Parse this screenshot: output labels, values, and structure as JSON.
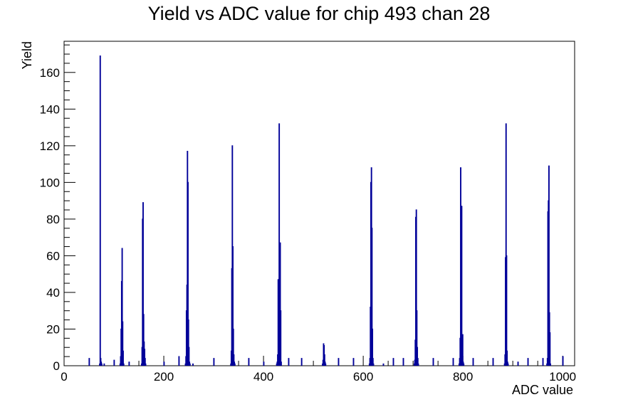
{
  "chart_data": {
    "type": "bar",
    "title": "Yield vs ADC value for chip 493 chan 28",
    "xlabel": "ADC value",
    "ylabel": "Yield",
    "xlim": [
      0,
      1024
    ],
    "ylim": [
      0,
      177
    ],
    "x_ticks": [
      0,
      200,
      400,
      600,
      800,
      1000
    ],
    "x_tick_labels": [
      "0",
      "200",
      "400",
      "600",
      "800",
      "1000"
    ],
    "y_ticks": [
      0,
      20,
      40,
      60,
      80,
      100,
      120,
      140,
      160
    ],
    "y_tick_labels": [
      "0",
      "20",
      "40",
      "60",
      "80",
      "100",
      "120",
      "140",
      "160"
    ],
    "bin_width": 1,
    "line_color": "#000099",
    "x": [
      71,
      72,
      73,
      74,
      75,
      112,
      113,
      114,
      115,
      116,
      117,
      118,
      119,
      155,
      156,
      157,
      158,
      159,
      160,
      161,
      162,
      163,
      243,
      244,
      245,
      246,
      247,
      248,
      249,
      250,
      251,
      252,
      334,
      335,
      336,
      337,
      338,
      339,
      340,
      341,
      342,
      426,
      427,
      428,
      429,
      430,
      431,
      432,
      433,
      434,
      435,
      518,
      519,
      520,
      521,
      522,
      523,
      524,
      612,
      613,
      614,
      615,
      616,
      617,
      618,
      619,
      620,
      702,
      703,
      704,
      705,
      706,
      707,
      708,
      709,
      710,
      792,
      793,
      794,
      795,
      796,
      797,
      798,
      799,
      800,
      801,
      883,
      884,
      885,
      886,
      887,
      888,
      889,
      890,
      968,
      969,
      970,
      971,
      972,
      973,
      974,
      975
    ],
    "values": [
      1,
      169,
      4,
      2,
      1,
      1,
      5,
      20,
      46,
      64,
      24,
      8,
      1,
      1,
      10,
      80,
      89,
      28,
      13,
      9,
      4,
      1,
      1,
      5,
      30,
      44,
      117,
      100,
      25,
      10,
      2,
      1,
      1,
      8,
      53,
      120,
      65,
      20,
      6,
      2,
      1,
      1,
      2,
      6,
      47,
      28,
      132,
      32,
      67,
      30,
      2,
      1,
      3,
      12,
      11,
      6,
      2,
      1,
      1,
      4,
      32,
      100,
      108,
      75,
      20,
      4,
      1,
      1,
      3,
      14,
      81,
      85,
      30,
      10,
      4,
      1,
      1,
      4,
      15,
      108,
      68,
      87,
      3,
      17,
      2,
      1,
      1,
      6,
      59,
      132,
      60,
      8,
      2,
      1,
      1,
      4,
      84,
      90,
      109,
      29,
      18,
      1
    ],
    "isolated_x": [
      50,
      80,
      100,
      130,
      200,
      230,
      258,
      300,
      370,
      400,
      450,
      476,
      550,
      580,
      640,
      660,
      680,
      740,
      780,
      820,
      860,
      910,
      930,
      960,
      1000
    ],
    "isolated_values": [
      4,
      1,
      3,
      2,
      2,
      5,
      1,
      4,
      4,
      2,
      4,
      4,
      4,
      4,
      1,
      4,
      4,
      4,
      4,
      4,
      4,
      2,
      4,
      4,
      5
    ]
  }
}
